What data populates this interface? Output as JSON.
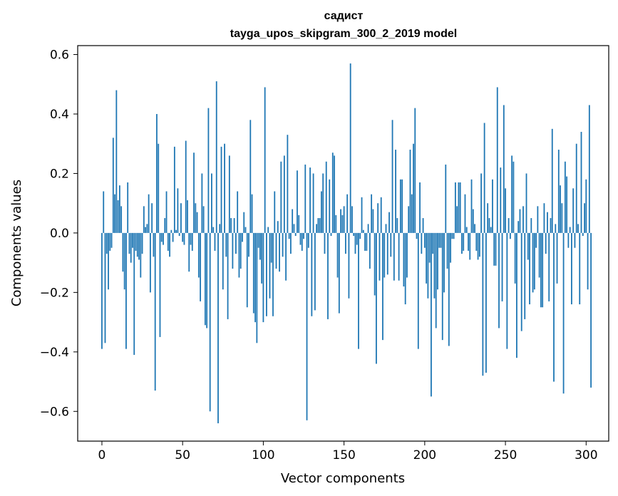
{
  "chart_data": {
    "type": "bar",
    "title": "садист",
    "subtitle": "tayga_upos_skipgram_300_2_2019 model",
    "xlabel": "Vector components",
    "ylabel": "Components values",
    "xlim": [
      -15,
      314
    ],
    "ylim": [
      -0.7,
      0.63
    ],
    "xticks": [
      0,
      50,
      100,
      150,
      200,
      250,
      300
    ],
    "xtick_labels": [
      "0",
      "50",
      "100",
      "150",
      "200",
      "250",
      "300"
    ],
    "yticks": [
      -0.6,
      -0.4,
      -0.2,
      0.0,
      0.2,
      0.4,
      0.6
    ],
    "ytick_labels": [
      "−0.6",
      "−0.4",
      "−0.2",
      "0.0",
      "0.2",
      "0.4",
      "0.6"
    ],
    "bar_color": "#1f77b4",
    "grid": false,
    "legend": "none",
    "values": [
      -0.39,
      0.14,
      -0.37,
      -0.07,
      -0.19,
      -0.06,
      -0.05,
      0.32,
      0.13,
      0.48,
      0.11,
      0.16,
      0.09,
      -0.13,
      -0.19,
      -0.39,
      0.17,
      -0.07,
      -0.1,
      -0.05,
      -0.41,
      -0.06,
      -0.08,
      -0.09,
      -0.15,
      -0.07,
      0.09,
      0.02,
      0.03,
      0.13,
      -0.2,
      0.1,
      -0.08,
      -0.53,
      0.4,
      0.3,
      -0.35,
      -0.03,
      -0.04,
      0.05,
      0.14,
      -0.06,
      -0.08,
      0.01,
      -0.03,
      0.29,
      0.01,
      0.15,
      -0.01,
      0.1,
      -0.03,
      -0.04,
      0.31,
      0.11,
      -0.13,
      -0.04,
      -0.06,
      0.27,
      0.1,
      0.07,
      -0.15,
      -0.23,
      0.2,
      0.09,
      -0.31,
      -0.32,
      0.42,
      -0.6,
      0.2,
      0.02,
      -0.06,
      0.51,
      -0.64,
      0.03,
      0.29,
      -0.19,
      0.3,
      -0.08,
      -0.29,
      0.26,
      0.05,
      -0.12,
      0.05,
      -0.07,
      0.14,
      -0.15,
      -0.12,
      -0.03,
      0.07,
      0.02,
      -0.25,
      -0.08,
      0.38,
      0.13,
      -0.27,
      -0.3,
      -0.37,
      -0.05,
      -0.09,
      -0.17,
      -0.3,
      0.49,
      -0.28,
      0.02,
      -0.22,
      -0.1,
      -0.28,
      0.14,
      -0.12,
      0.04,
      -0.13,
      0.24,
      -0.08,
      0.26,
      -0.16,
      0.33,
      -0.02,
      -0.07,
      0.08,
      0.03,
      -0.01,
      0.21,
      0.06,
      -0.04,
      -0.06,
      -0.02,
      0.23,
      -0.63,
      -0.05,
      0.22,
      -0.28,
      0.2,
      -0.26,
      0.03,
      0.05,
      0.05,
      0.14,
      0.2,
      -0.07,
      0.24,
      -0.29,
      0.18,
      -0.01,
      0.27,
      0.26,
      0.06,
      -0.15,
      -0.27,
      0.08,
      0.06,
      0.09,
      -0.07,
      0.13,
      -0.22,
      0.57,
      0.09,
      -0.01,
      -0.07,
      -0.04,
      -0.39,
      -0.02,
      0.12,
      0.01,
      -0.06,
      -0.06,
      0.03,
      -0.12,
      0.13,
      0.08,
      -0.21,
      -0.44,
      0.1,
      -0.16,
      0.12,
      -0.36,
      -0.15,
      0.03,
      -0.14,
      0.07,
      -0.08,
      0.38,
      -0.16,
      0.28,
      0.05,
      -0.16,
      0.18,
      0.18,
      -0.18,
      -0.24,
      -0.15,
      0.09,
      0.28,
      0.13,
      0.3,
      0.42,
      -0.02,
      -0.39,
      0.17,
      -0.07,
      0.05,
      -0.05,
      -0.17,
      -0.22,
      -0.1,
      -0.55,
      -0.07,
      -0.22,
      -0.32,
      -0.19,
      -0.05,
      -0.05,
      -0.36,
      -0.2,
      0.23,
      -0.12,
      -0.38,
      -0.1,
      -0.02,
      -0.02,
      0.17,
      0.09,
      0.17,
      0.17,
      -0.07,
      -0.06,
      0.13,
      0.02,
      -0.06,
      -0.09,
      0.18,
      0.08,
      0.03,
      -0.06,
      -0.09,
      -0.08,
      0.2,
      -0.48,
      0.37,
      -0.47,
      0.1,
      0.05,
      0.02,
      0.18,
      -0.11,
      -0.11,
      0.49,
      -0.32,
      0.22,
      -0.23,
      0.43,
      0.15,
      -0.39,
      0.05,
      -0.02,
      0.26,
      0.24,
      -0.17,
      -0.42,
      0.04,
      0.08,
      -0.33,
      0.09,
      -0.29,
      0.2,
      -0.09,
      -0.24,
      0.05,
      -0.2,
      -0.19,
      -0.05,
      0.09,
      -0.15,
      -0.25,
      -0.25,
      0.1,
      -0.07,
      0.07,
      -0.23,
      0.05,
      0.35,
      -0.5,
      0.03,
      -0.17,
      0.28,
      0.16,
      0.1,
      -0.54,
      0.24,
      0.19,
      -0.05,
      0.02,
      -0.24,
      0.15,
      -0.05,
      0.3,
      0.03,
      -0.24,
      0.34,
      -0.01,
      0.1,
      0.18,
      -0.19,
      0.43,
      -0.52
    ]
  }
}
